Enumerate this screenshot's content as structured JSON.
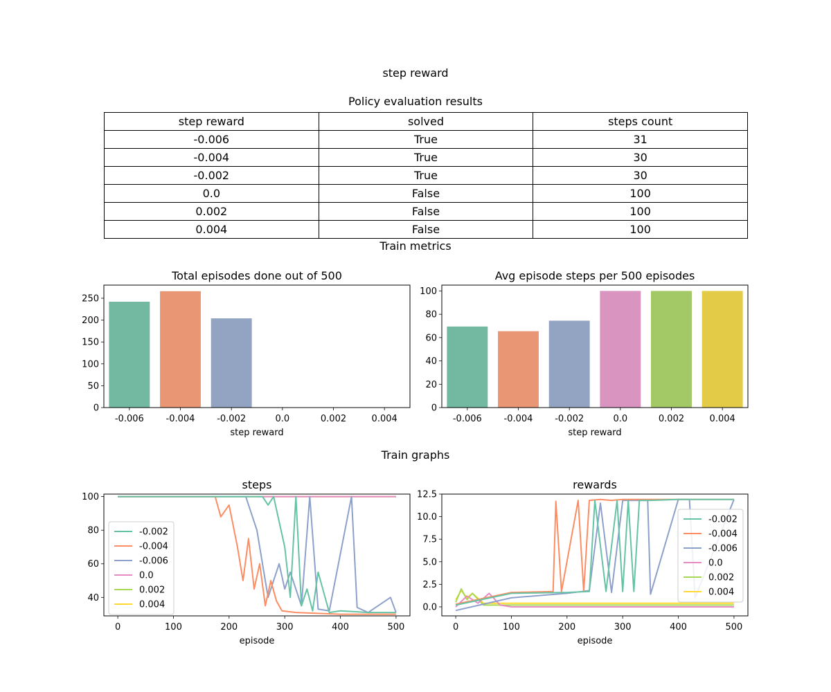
{
  "figure": {
    "suptitle": "step reward",
    "table_title": "Policy evaluation results",
    "metrics_title": "Train metrics",
    "graphs_title": "Train graphs"
  },
  "table": {
    "headers": [
      "step reward",
      "solved",
      "steps count"
    ],
    "rows": [
      [
        "-0.006",
        "True",
        "31"
      ],
      [
        "-0.004",
        "True",
        "30"
      ],
      [
        "-0.002",
        "True",
        "30"
      ],
      [
        "0.0",
        "False",
        "100"
      ],
      [
        "0.002",
        "False",
        "100"
      ],
      [
        "0.004",
        "False",
        "100"
      ]
    ]
  },
  "palette": [
    "#66c2a5",
    "#fc8d62",
    "#8da0cb",
    "#e78ac3",
    "#a6d854",
    "#ffd92f"
  ],
  "chart_data": [
    {
      "type": "bar",
      "title": "Total episodes done out of 500",
      "xlabel": "step reward",
      "ylabel": "",
      "categories": [
        "-0.006",
        "-0.004",
        "-0.002",
        "0.0",
        "0.002",
        "0.004"
      ],
      "values": [
        242,
        266,
        204,
        0,
        0,
        0
      ],
      "ylim": [
        0,
        280
      ],
      "yticks": [
        0,
        50,
        100,
        150,
        200,
        250
      ],
      "colors": [
        "#73b8a1",
        "#e99675",
        "#93a4c3",
        "#d995c0",
        "#a3c966",
        "#e3cb48"
      ]
    },
    {
      "type": "bar",
      "title": "Avg episode steps per 500 episodes",
      "xlabel": "step reward",
      "ylabel": "",
      "categories": [
        "-0.006",
        "-0.004",
        "-0.002",
        "0.0",
        "0.002",
        "0.004"
      ],
      "values": [
        69.5,
        65.5,
        74.5,
        100,
        100,
        100
      ],
      "ylim": [
        0,
        105
      ],
      "yticks": [
        0,
        20,
        40,
        60,
        80,
        100
      ],
      "colors": [
        "#73b8a1",
        "#e99675",
        "#93a4c3",
        "#d995c0",
        "#a3c966",
        "#e3cb48"
      ]
    },
    {
      "type": "line",
      "title": "steps",
      "xlabel": "episode",
      "ylabel": "",
      "xlim": [
        -25,
        525
      ],
      "ylim": [
        29,
        101.5
      ],
      "xticks": [
        0,
        100,
        200,
        300,
        400,
        500
      ],
      "yticks": [
        40,
        60,
        80,
        100
      ],
      "legend": "center-left",
      "series": [
        {
          "name": "-0.002",
          "color": "#66c2a5",
          "x": [
            0,
            220,
            260,
            270,
            280,
            300,
            310,
            320,
            330,
            340,
            350,
            360,
            380,
            400,
            450,
            500
          ],
          "y": [
            100,
            100,
            100,
            95,
            100,
            70,
            40,
            100,
            35,
            45,
            32,
            55,
            31,
            32,
            31,
            31
          ]
        },
        {
          "name": "-0.004",
          "color": "#fc8d62",
          "x": [
            0,
            175,
            185,
            200,
            215,
            225,
            235,
            245,
            255,
            265,
            275,
            285,
            295,
            320,
            400,
            500
          ],
          "y": [
            100,
            100,
            88,
            95,
            70,
            50,
            75,
            45,
            60,
            35,
            50,
            38,
            32,
            31,
            30,
            30
          ]
        },
        {
          "name": "-0.006",
          "color": "#8da0cb",
          "x": [
            0,
            230,
            250,
            270,
            290,
            300,
            310,
            330,
            345,
            360,
            380,
            420,
            430,
            450,
            490,
            500
          ],
          "y": [
            100,
            100,
            80,
            40,
            60,
            45,
            55,
            35,
            100,
            33,
            32,
            100,
            34,
            31,
            40,
            31
          ]
        },
        {
          "name": "0.0",
          "color": "#e78ac3",
          "x": [
            0,
            500
          ],
          "y": [
            100,
            100
          ]
        },
        {
          "name": "0.002",
          "color": "#a6d854",
          "x": [
            0,
            500
          ],
          "y": [
            100,
            100
          ]
        },
        {
          "name": "0.004",
          "color": "#ffd92f",
          "x": [
            0,
            500
          ],
          "y": [
            100,
            100
          ]
        }
      ]
    },
    {
      "type": "line",
      "title": "rewards",
      "xlabel": "episode",
      "ylabel": "",
      "xlim": [
        -25,
        525
      ],
      "ylim": [
        -1.0,
        12.5
      ],
      "xticks": [
        0,
        100,
        200,
        300,
        400,
        500
      ],
      "yticks": [
        0.0,
        2.5,
        5.0,
        7.5,
        10.0,
        12.5
      ],
      "yticklabels": [
        "0.0",
        "2.5",
        "5.0",
        "7.5",
        "10.0",
        "12.5"
      ],
      "legend": "right",
      "series": [
        {
          "name": "-0.002",
          "color": "#66c2a5",
          "x": [
            0,
            100,
            200,
            240,
            250,
            270,
            290,
            300,
            310,
            320,
            330,
            350,
            400,
            500
          ],
          "y": [
            0.2,
            1.5,
            1.6,
            1.7,
            11.8,
            1.7,
            11.8,
            1.7,
            11.8,
            1.7,
            11.8,
            11.8,
            11.9,
            11.9
          ]
        },
        {
          "name": "-0.004",
          "color": "#fc8d62",
          "x": [
            0,
            100,
            175,
            180,
            190,
            220,
            230,
            240,
            260,
            280,
            300,
            400,
            500
          ],
          "y": [
            0.3,
            1.6,
            1.7,
            11.7,
            1.7,
            11.8,
            1.7,
            11.8,
            11.9,
            11.8,
            11.9,
            11.9,
            11.9
          ]
        },
        {
          "name": "-0.006",
          "color": "#8da0cb",
          "x": [
            0,
            100,
            200,
            240,
            260,
            280,
            300,
            345,
            350,
            400,
            420,
            430,
            500
          ],
          "y": [
            -0.4,
            1.0,
            1.5,
            1.8,
            11.5,
            1.6,
            11.8,
            11.8,
            1.4,
            11.9,
            11.9,
            1.0,
            11.9
          ]
        },
        {
          "name": "0.0",
          "color": "#e78ac3",
          "x": [
            0,
            20,
            40,
            60,
            80,
            100,
            200,
            500
          ],
          "y": [
            0.0,
            1.2,
            0.4,
            1.5,
            0.2,
            0.0,
            0.0,
            0.0
          ]
        },
        {
          "name": "0.002",
          "color": "#a6d854",
          "x": [
            0,
            10,
            20,
            30,
            50,
            100,
            500
          ],
          "y": [
            0.5,
            2.0,
            0.8,
            1.5,
            0.2,
            0.2,
            0.2
          ]
        },
        {
          "name": "0.004",
          "color": "#ffd92f",
          "x": [
            0,
            10,
            20,
            30,
            50,
            100,
            500
          ],
          "y": [
            0.8,
            1.8,
            1.0,
            1.5,
            0.4,
            0.4,
            0.4
          ]
        }
      ]
    }
  ]
}
